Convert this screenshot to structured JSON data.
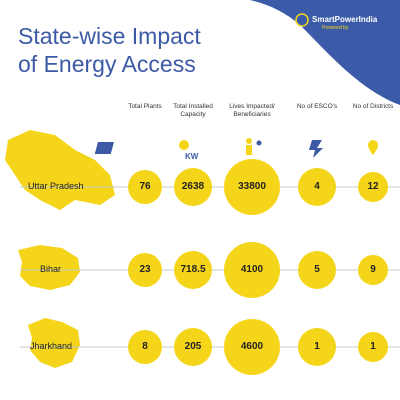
{
  "logo": {
    "name": "SmartPowerIndia",
    "tagline": "Powered by"
  },
  "header": {
    "title": "State-wise Impact of Energy Access"
  },
  "columns": [
    "Total Plants",
    "Total Installed Capacity",
    "Lives Impacted/ Beneficiaries",
    "No of ESCO's",
    "No of Districts"
  ],
  "capacity_icon_text": "KW",
  "rows": [
    {
      "state": "Uttar Pradesh",
      "values": [
        76,
        2638,
        33800,
        4,
        12
      ]
    },
    {
      "state": "Bihar",
      "values": [
        23,
        718.5,
        4100,
        5,
        9
      ]
    },
    {
      "state": "Jharkhand",
      "values": [
        8,
        205,
        4600,
        1,
        1
      ]
    }
  ]
}
